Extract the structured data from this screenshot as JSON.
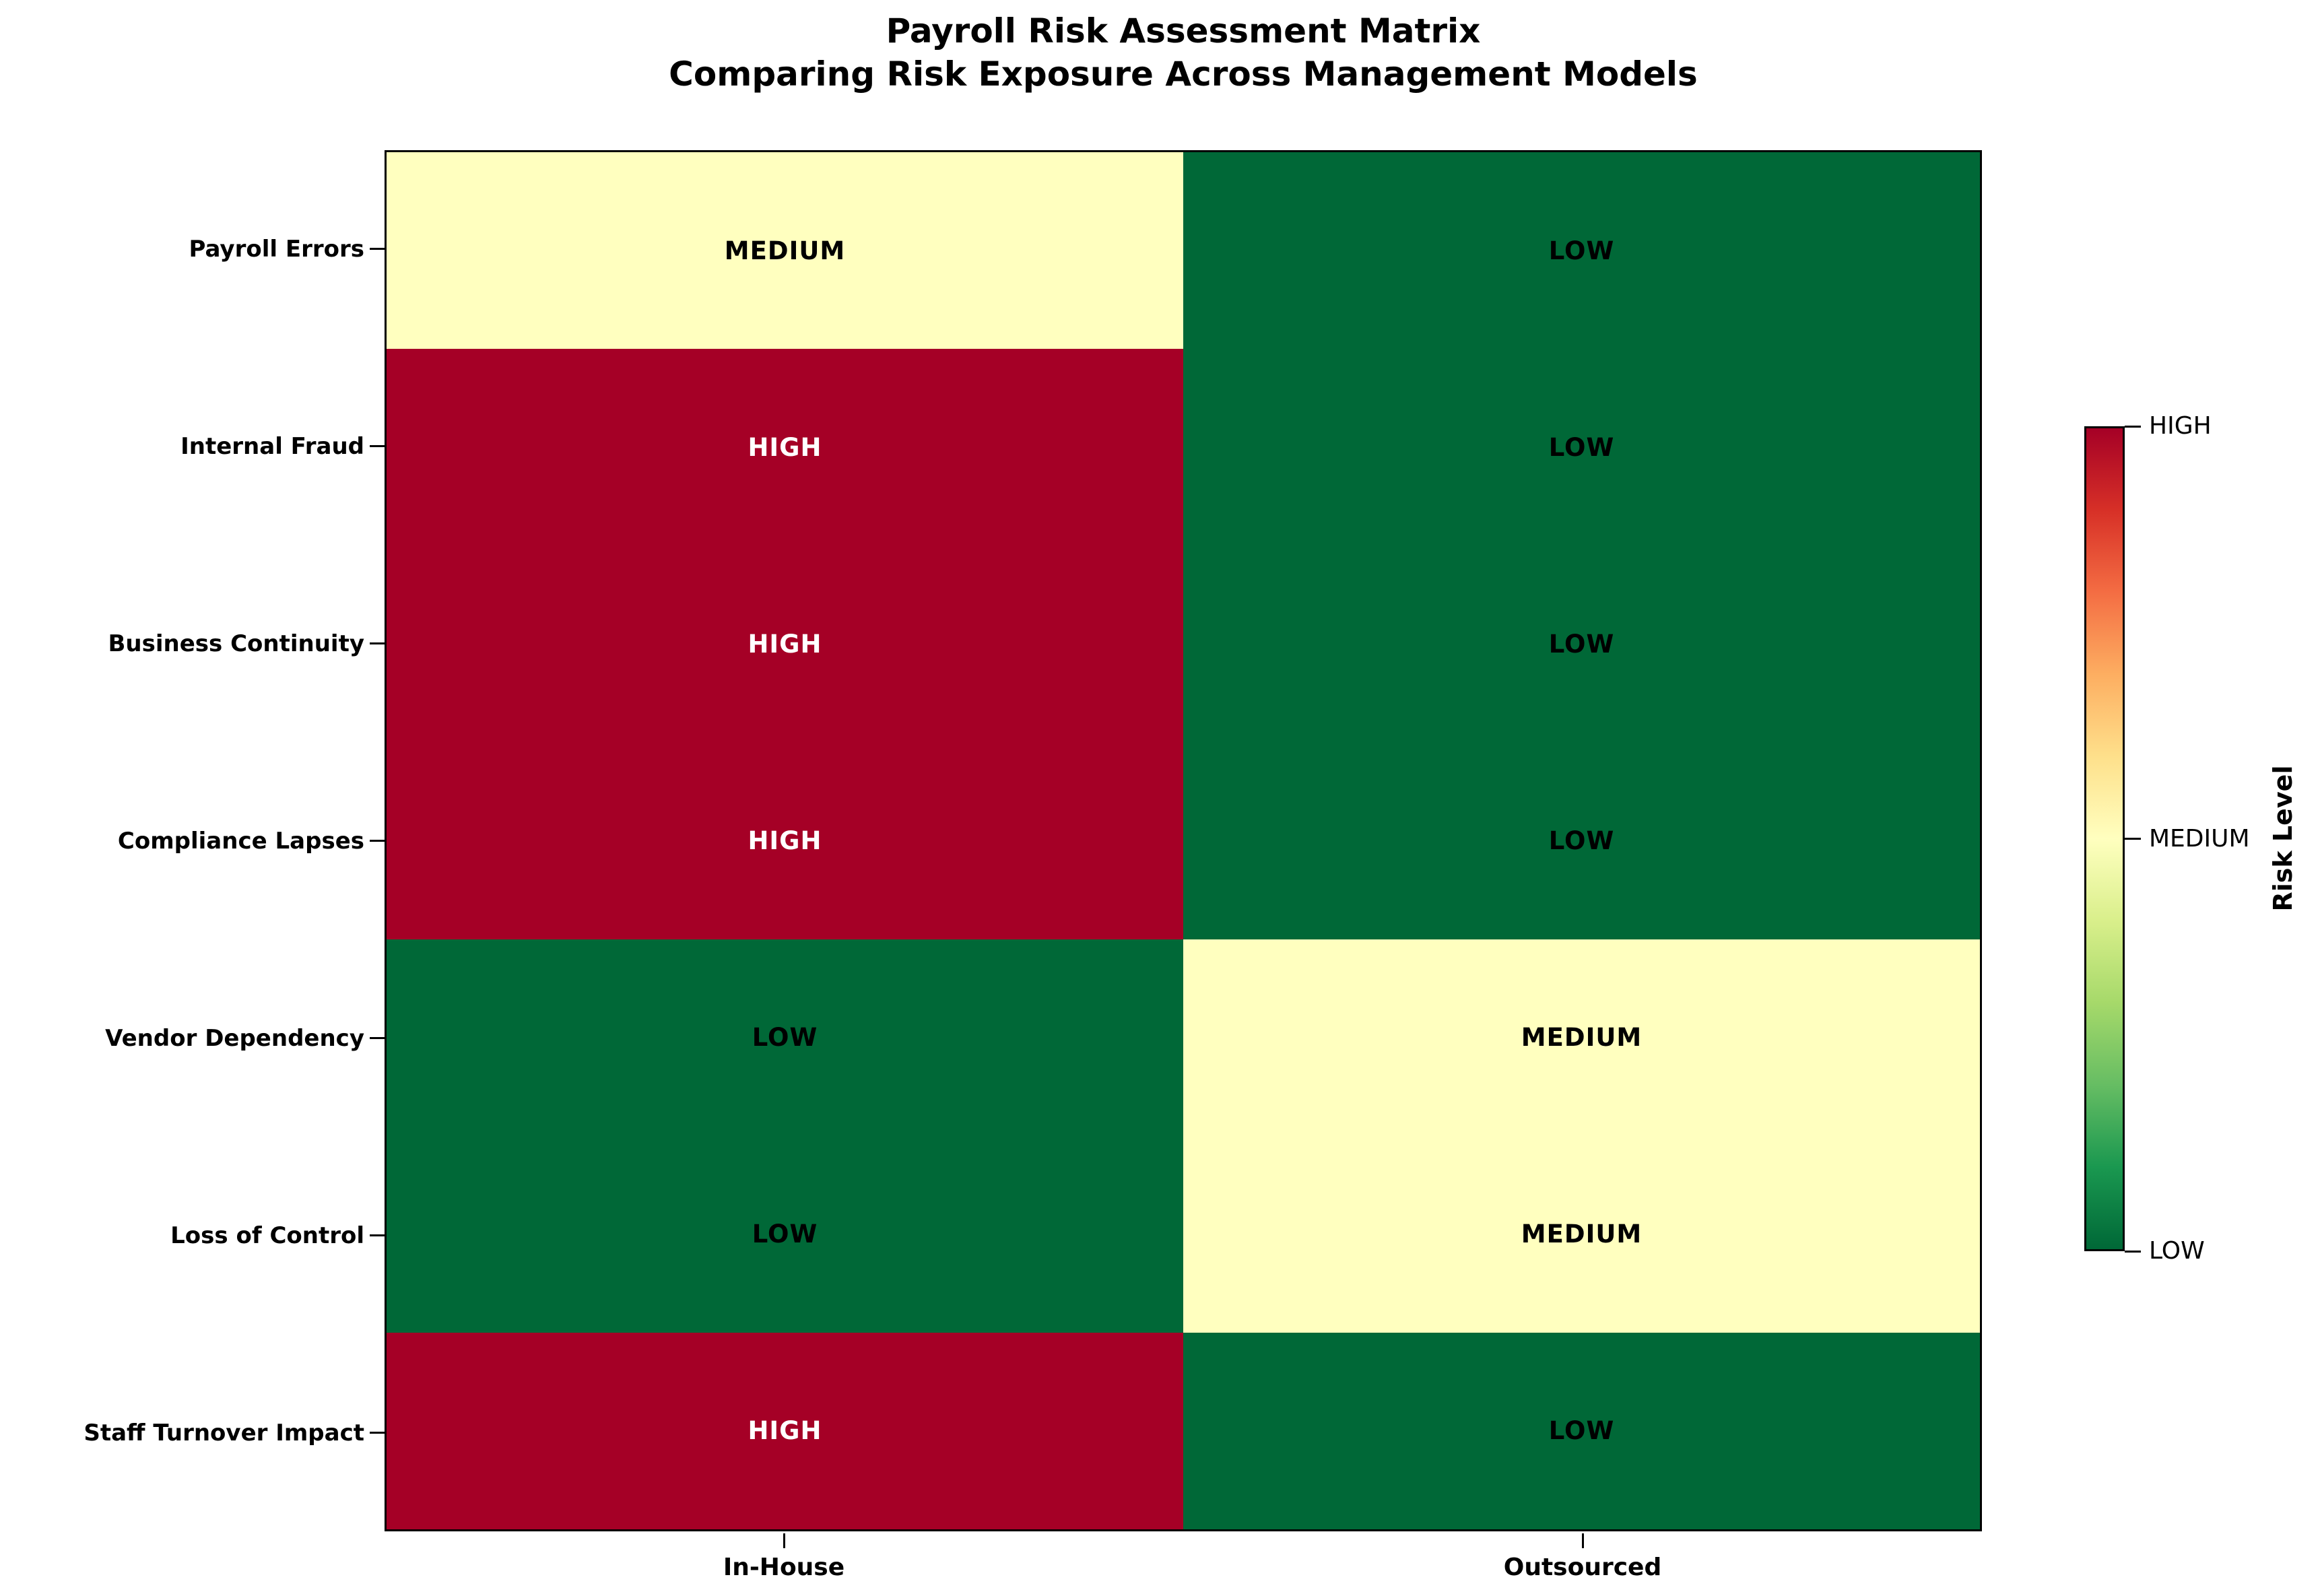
{
  "chart": {
    "title_line1": "Payroll Risk Assessment Matrix",
    "title_line2": "Comparing Risk Exposure Across Management Models"
  },
  "chart_data": {
    "type": "heatmap",
    "rows": [
      "Payroll Errors",
      "Internal Fraud",
      "Business Continuity",
      "Compliance Lapses",
      "Vendor Dependency",
      "Loss of Control",
      "Staff Turnover Impact"
    ],
    "columns": [
      "In-House",
      "Outsourced"
    ],
    "values": [
      [
        "MEDIUM",
        "LOW"
      ],
      [
        "HIGH",
        "LOW"
      ],
      [
        "HIGH",
        "LOW"
      ],
      [
        "HIGH",
        "LOW"
      ],
      [
        "LOW",
        "MEDIUM"
      ],
      [
        "LOW",
        "MEDIUM"
      ],
      [
        "HIGH",
        "LOW"
      ]
    ],
    "value_scale": {
      "LOW": 0,
      "MEDIUM": 1,
      "HIGH": 2
    },
    "cell_colors": {
      "HIGH": "#a50026",
      "MEDIUM": "#ffffbf",
      "LOW": "#006837"
    },
    "cell_text_colors": {
      "HIGH": "#ffffff",
      "MEDIUM": "#000000",
      "LOW": "#000000"
    },
    "colormap": "RdYlGn reversed",
    "grid": false,
    "legend_position": "right"
  },
  "colorbar": {
    "label": "Risk Level",
    "tick_labels": [
      "HIGH",
      "MEDIUM",
      "LOW"
    ],
    "tick_fractions_from_top": [
      0,
      0.5,
      1
    ],
    "gradient_top_to_bottom": [
      "#a50026",
      "#d73027",
      "#f46d43",
      "#fdae61",
      "#fee08b",
      "#ffffbf",
      "#d9ef8b",
      "#a6d96a",
      "#66bd63",
      "#1a9850",
      "#006837"
    ]
  }
}
